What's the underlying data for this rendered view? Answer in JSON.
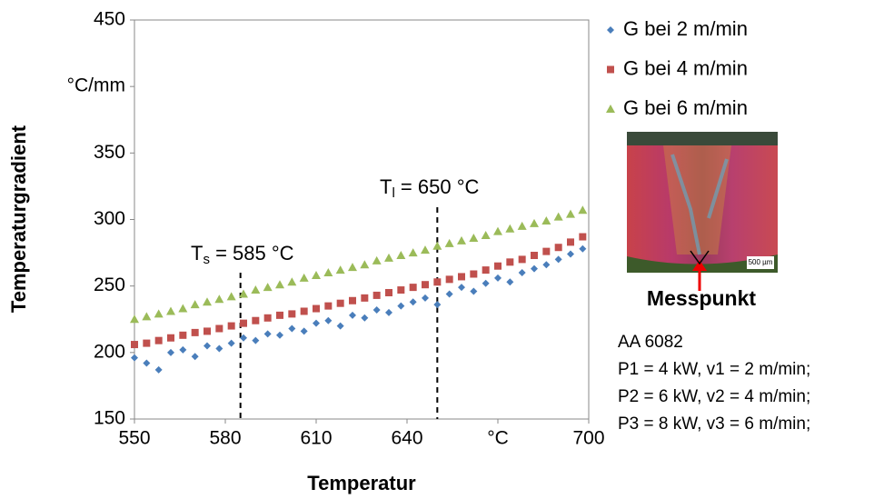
{
  "chart_data": {
    "type": "scatter",
    "x_label": "Temperatur",
    "y_label": "Temperaturgradient",
    "xlim": [
      550,
      700
    ],
    "xticks": [
      550,
      580,
      610,
      640,
      {
        "value": 670,
        "label": "°C"
      },
      700
    ],
    "ylim": [
      150,
      450
    ],
    "yticks": [
      150,
      200,
      250,
      300,
      350,
      {
        "value": 400,
        "label": "°C/mm"
      },
      450
    ],
    "x": [
      550,
      554,
      558,
      562,
      566,
      570,
      574,
      578,
      582,
      586,
      590,
      594,
      598,
      602,
      606,
      610,
      614,
      618,
      622,
      626,
      630,
      634,
      638,
      642,
      646,
      650,
      654,
      658,
      662,
      666,
      670,
      674,
      678,
      682,
      686,
      690,
      694,
      698
    ],
    "series": [
      {
        "name": "G bei 2 m/min",
        "color": "#4a7ebb",
        "marker": "diamond",
        "values": [
          196,
          192,
          187,
          200,
          202,
          197,
          205,
          203,
          207,
          211,
          209,
          214,
          213,
          218,
          216,
          222,
          224,
          220,
          228,
          226,
          232,
          230,
          235,
          238,
          241,
          236,
          244,
          249,
          246,
          252,
          256,
          253,
          260,
          263,
          266,
          270,
          274,
          278
        ]
      },
      {
        "name": "G bei 4 m/min",
        "color": "#c0504d",
        "marker": "square",
        "values": [
          206,
          207,
          209,
          211,
          213,
          215,
          216,
          218,
          220,
          222,
          224,
          226,
          228,
          229,
          231,
          233,
          235,
          237,
          239,
          241,
          243,
          245,
          247,
          249,
          251,
          253,
          255,
          257,
          259,
          262,
          265,
          268,
          270,
          273,
          276,
          279,
          283,
          287
        ]
      },
      {
        "name": "G bei 6 m/min",
        "color": "#9bbb59",
        "marker": "triangle",
        "values": [
          225,
          227,
          229,
          231,
          233,
          236,
          238,
          240,
          242,
          244,
          247,
          249,
          251,
          253,
          256,
          258,
          260,
          262,
          264,
          266,
          269,
          271,
          273,
          275,
          277,
          280,
          282,
          284,
          286,
          288,
          291,
          293,
          295,
          297,
          299,
          302,
          304,
          307
        ]
      }
    ],
    "annotations": [
      {
        "x": 585,
        "main": "T",
        "sub": "s",
        "rest": " = 585 °C"
      },
      {
        "x": 650,
        "main": "T",
        "sub": "l",
        "rest": " = 650 °C"
      }
    ],
    "image_scale": "500 µm",
    "image_caption": "Messpunkt",
    "notes": [
      "AA 6082",
      "P1 = 4 kW, v1 = 2 m/min;",
      "P2 = 6 kW, v2 = 4 m/min;",
      "P3 = 8 kW, v3 = 6 m/min;"
    ]
  }
}
